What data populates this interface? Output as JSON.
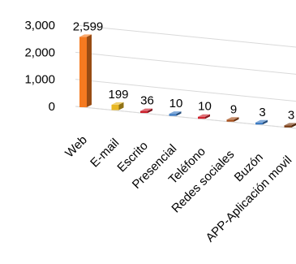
{
  "chart_data": {
    "type": "bar",
    "view": "3d",
    "categories": [
      "Web",
      "E-mail",
      "Escrito",
      "Presencial",
      "Teléfono",
      "Redes sociales",
      "Buzón",
      "APP-Aplicación movil"
    ],
    "values": [
      2599,
      199,
      36,
      10,
      10,
      9,
      3,
      3
    ],
    "value_labels": [
      "2,599",
      "199",
      "36",
      "10",
      "10",
      "9",
      "3",
      "3"
    ],
    "colors": [
      "#f57a20",
      "#e8b824",
      "#cc1f2b",
      "#3d7cc4",
      "#d0232e",
      "#a8501c",
      "#3d7cc4",
      "#7a3b12"
    ],
    "ylim": [
      0,
      3000
    ],
    "yticks": [
      0,
      1000,
      2000,
      3000
    ],
    "ytick_labels": [
      "0",
      "1,000",
      "2,000",
      "3,000"
    ],
    "grid": true,
    "title": "",
    "xlabel": "",
    "ylabel": ""
  }
}
